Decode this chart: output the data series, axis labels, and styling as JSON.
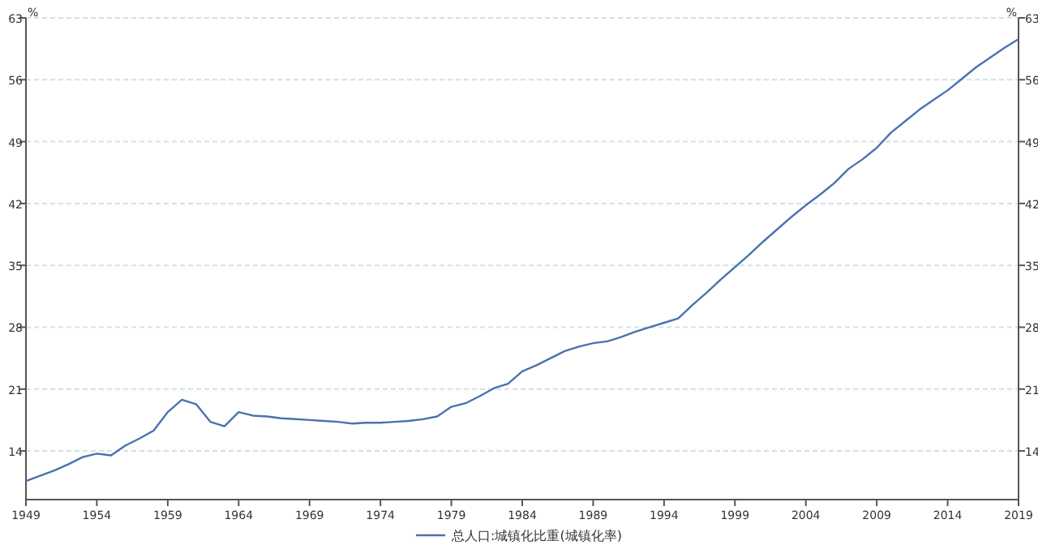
{
  "chart_data": {
    "type": "line",
    "ylabel": "%",
    "y2label": "%",
    "x": [
      1949,
      1950,
      1951,
      1952,
      1953,
      1954,
      1955,
      1956,
      1957,
      1958,
      1959,
      1960,
      1961,
      1962,
      1963,
      1964,
      1965,
      1966,
      1967,
      1968,
      1969,
      1970,
      1971,
      1972,
      1973,
      1974,
      1975,
      1976,
      1977,
      1978,
      1979,
      1980,
      1981,
      1982,
      1983,
      1984,
      1985,
      1986,
      1987,
      1988,
      1989,
      1990,
      1991,
      1992,
      1993,
      1994,
      1995,
      1996,
      1997,
      1998,
      1999,
      2000,
      2001,
      2002,
      2003,
      2004,
      2005,
      2006,
      2007,
      2008,
      2009,
      2010,
      2011,
      2012,
      2013,
      2014,
      2015,
      2016,
      2017,
      2018,
      2019
    ],
    "series": [
      {
        "name": "总人口:城镇化比重(城镇化率)",
        "color": "#4a72b0",
        "values": [
          10.6,
          11.2,
          11.8,
          12.5,
          13.3,
          13.7,
          13.5,
          14.6,
          15.4,
          16.3,
          18.4,
          19.8,
          19.3,
          17.3,
          16.8,
          18.4,
          18.0,
          17.9,
          17.7,
          17.6,
          17.5,
          17.4,
          17.3,
          17.1,
          17.2,
          17.2,
          17.3,
          17.4,
          17.6,
          17.9,
          19.0,
          19.4,
          20.2,
          21.1,
          21.6,
          23.0,
          23.7,
          24.5,
          25.3,
          25.8,
          26.2,
          26.4,
          26.9,
          27.5,
          28.0,
          28.5,
          29.0,
          30.5,
          31.9,
          33.4,
          34.8,
          36.2,
          37.7,
          39.1,
          40.5,
          41.8,
          43.0,
          44.3,
          45.9,
          47.0,
          48.3,
          50.0,
          51.3,
          52.6,
          53.7,
          54.8,
          56.1,
          57.4,
          58.5,
          59.6,
          60.6
        ]
      }
    ],
    "xlim": [
      1949,
      2019
    ],
    "xticks": [
      1949,
      1954,
      1959,
      1964,
      1969,
      1974,
      1979,
      1984,
      1989,
      1994,
      1999,
      2004,
      2009,
      2014,
      2019
    ],
    "ylim": [
      8.5,
      63
    ],
    "yticks": [
      14,
      21,
      28,
      35,
      42,
      49,
      56,
      63
    ],
    "y2lim": [
      8.5,
      63
    ],
    "y2ticks": [
      14,
      21,
      28,
      35,
      42,
      49,
      56,
      63
    ],
    "grid": "y",
    "legend": "bottom",
    "marker": "none",
    "line_style": "solid"
  }
}
